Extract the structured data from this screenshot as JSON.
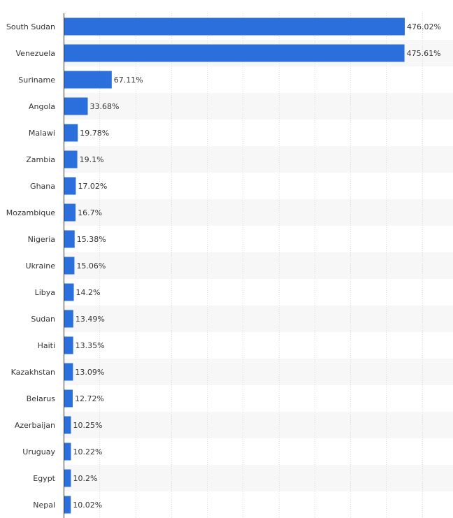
{
  "chart_data": {
    "type": "bar",
    "orientation": "horizontal",
    "categories": [
      "South Sudan",
      "Venezuela",
      "Suriname",
      "Angola",
      "Malawi",
      "Zambia",
      "Ghana",
      "Mozambique",
      "Nigeria",
      "Ukraine",
      "Libya",
      "Sudan",
      "Haiti",
      "Kazakhstan",
      "Belarus",
      "Azerbaijan",
      "Uruguay",
      "Egypt",
      "Nepal"
    ],
    "values": [
      476.02,
      475.61,
      67.11,
      33.68,
      19.78,
      19.1,
      17.02,
      16.7,
      15.38,
      15.06,
      14.2,
      13.49,
      13.35,
      13.09,
      12.72,
      10.25,
      10.22,
      10.2,
      10.02
    ],
    "value_labels": [
      "476.02%",
      "475.61%",
      "67.11%",
      "33.68%",
      "19.78%",
      "19.1%",
      "17.02%",
      "16.7%",
      "15.38%",
      "15.06%",
      "14.2%",
      "13.49%",
      "13.35%",
      "13.09%",
      "12.72%",
      "10.25%",
      "10.22%",
      "10.2%",
      "10.02%"
    ],
    "xlim": [
      0,
      550
    ],
    "x_grid_step": 50,
    "grid": true,
    "title": "",
    "xlabel": "",
    "ylabel": "",
    "bar_color": "#2a6fdb",
    "stripe_color": "#f7f7f7"
  }
}
